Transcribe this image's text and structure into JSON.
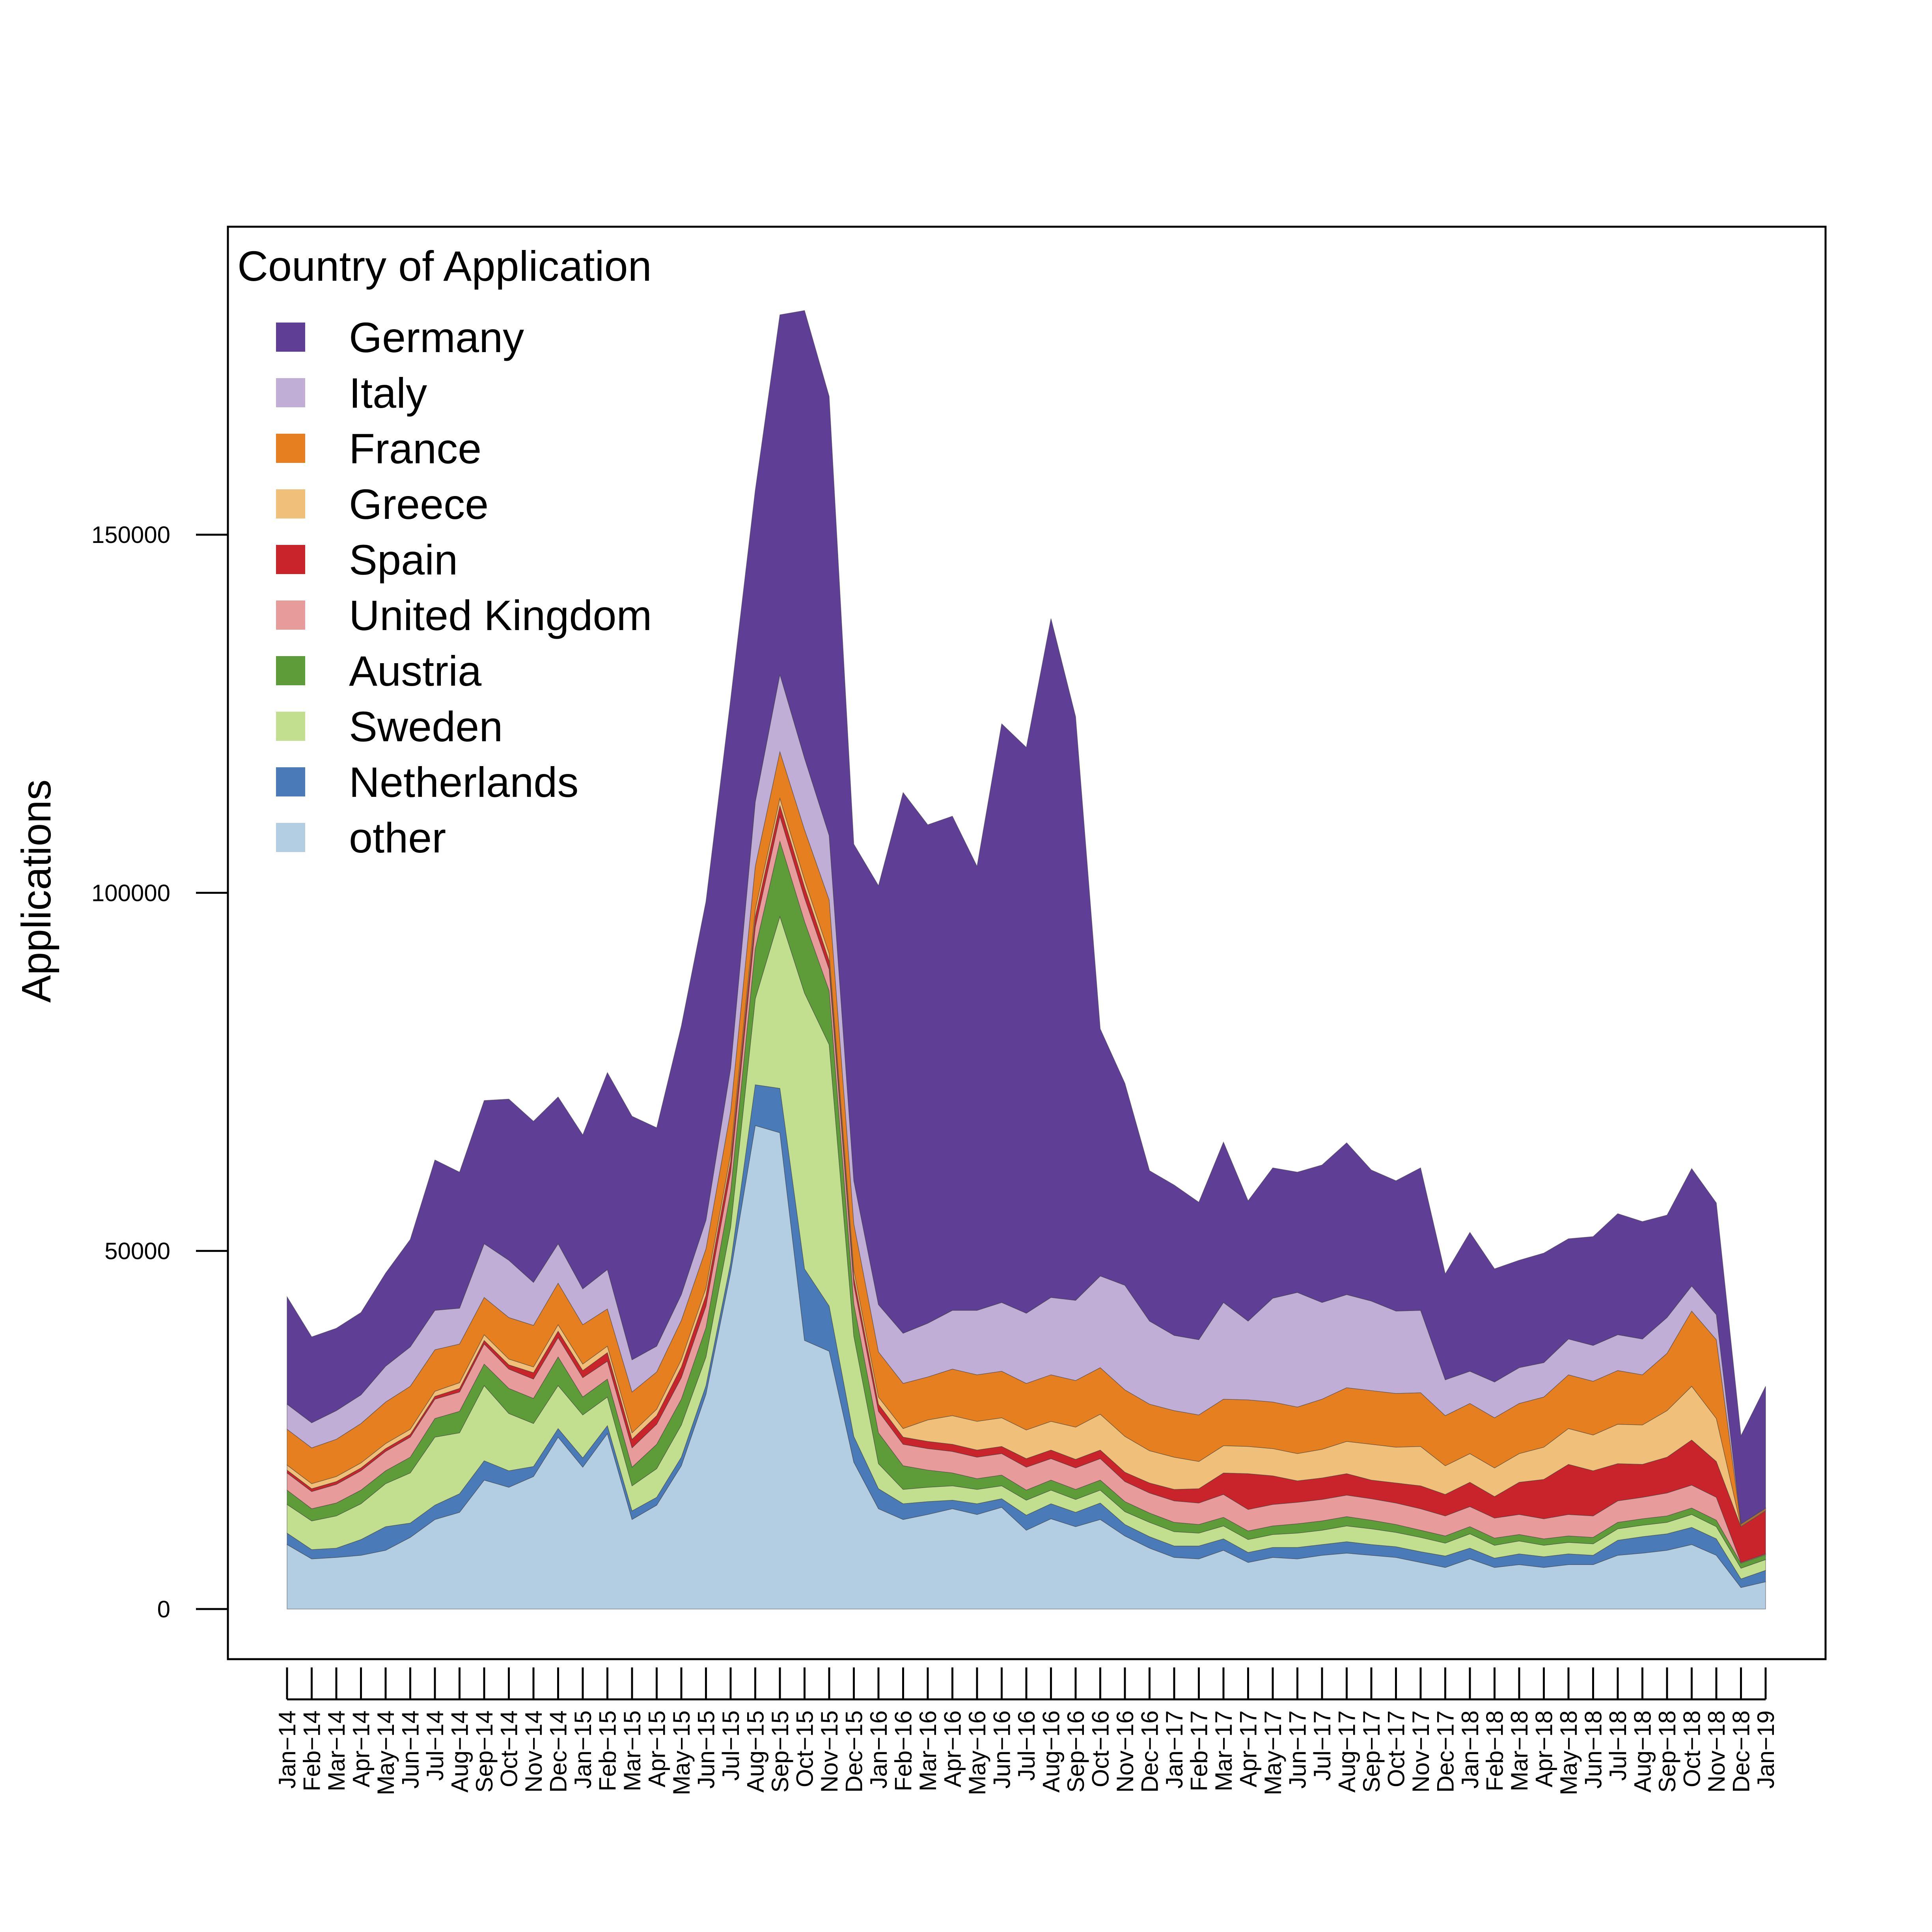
{
  "chart_data": {
    "type": "area",
    "stacked": true,
    "title": "",
    "xlabel": "",
    "ylabel": "Applications",
    "ylim": [
      -7000,
      193000
    ],
    "yticks": [
      0,
      50000,
      100000,
      150000
    ],
    "y_tick_labels": [
      "0",
      "50000",
      "100000",
      "150000"
    ],
    "grid": false,
    "legend": {
      "title": "Country of Application",
      "position": "top-left"
    },
    "x": [
      "Jan-14",
      "Feb-14",
      "Mar-14",
      "Apr-14",
      "May-14",
      "Jun-14",
      "Jul-14",
      "Aug-14",
      "Sep-14",
      "Oct-14",
      "Nov-14",
      "Dec-14",
      "Jan-15",
      "Feb-15",
      "Mar-15",
      "Apr-15",
      "May-15",
      "Jun-15",
      "Jul-15",
      "Aug-15",
      "Sep-15",
      "Oct-15",
      "Nov-15",
      "Dec-15",
      "Jan-16",
      "Feb-16",
      "Mar-16",
      "Apr-16",
      "May-16",
      "Jun-16",
      "Jul-16",
      "Aug-16",
      "Sep-16",
      "Oct-16",
      "Nov-16",
      "Dec-16",
      "Jan-17",
      "Feb-17",
      "Mar-17",
      "Apr-17",
      "May-17",
      "Jun-17",
      "Jul-17",
      "Aug-17",
      "Sep-17",
      "Oct-17",
      "Nov-17",
      "Dec-17",
      "Jan-18",
      "Feb-18",
      "Mar-18",
      "Apr-18",
      "May-18",
      "Jun-18",
      "Jul-18",
      "Aug-18",
      "Sep-18",
      "Oct-18",
      "Nov-18",
      "Dec-18",
      "Jan-19"
    ],
    "x_tick_labels": [
      "Jan−14",
      "Feb−14",
      "Mar−14",
      "Apr−14",
      "May−14",
      "Jun−14",
      "Jul−14",
      "Aug−14",
      "Sep−14",
      "Oct−14",
      "Nov−14",
      "Dec−14",
      "Jan−15",
      "Feb−15",
      "Mar−15",
      "Apr−15",
      "May−15",
      "Jun−15",
      "Jul−15",
      "Aug−15",
      "Sep−15",
      "Oct−15",
      "Nov−15",
      "Dec−15",
      "Jan−16",
      "Feb−16",
      "Mar−16",
      "Apr−16",
      "May−16",
      "Jun−16",
      "Jul−16",
      "Aug−16",
      "Sep−16",
      "Oct−16",
      "Nov−16",
      "Dec−16",
      "Jan−17",
      "Feb−17",
      "Mar−17",
      "Apr−17",
      "May−17",
      "Jun−17",
      "Jul−17",
      "Aug−17",
      "Sep−17",
      "Oct−17",
      "Nov−17",
      "Dec−17",
      "Jan−18",
      "Feb−18",
      "Mar−18",
      "Apr−18",
      "May−18",
      "Jun−18",
      "Jul−18",
      "Aug−18",
      "Sep−18",
      "Oct−18",
      "Nov−18",
      "Dec−18",
      "Jan−19"
    ],
    "series": [
      {
        "name": "other",
        "color": "#b3cde3",
        "values": [
          9000,
          7000,
          7200,
          7500,
          8200,
          10000,
          12500,
          13500,
          18000,
          17000,
          18500,
          24000,
          19800,
          24500,
          12500,
          14500,
          20000,
          30000,
          47000,
          67500,
          66500,
          37500,
          36000,
          20500,
          14000,
          12500,
          13200,
          14000,
          13200,
          14200,
          11000,
          12600,
          11500,
          12500,
          10200,
          8500,
          7200,
          7000,
          8200,
          6500,
          7200,
          7000,
          7500,
          7800,
          7500,
          7200,
          6500,
          5800,
          7000,
          5800,
          6200,
          5800,
          6200,
          6200,
          7500,
          7800,
          8200,
          9000,
          7500,
          3000,
          3800
        ]
      },
      {
        "name": "Netherlands",
        "color": "#4a7ab8",
        "values": [
          1600,
          1300,
          1300,
          2200,
          3300,
          2000,
          2000,
          2600,
          2700,
          2300,
          1400,
          1200,
          1300,
          1100,
          1200,
          1100,
          1200,
          1200,
          1300,
          5700,
          6200,
          10000,
          6300,
          3600,
          2800,
          2200,
          1800,
          1200,
          1500,
          1200,
          2100,
          2100,
          2000,
          2300,
          1600,
          1600,
          1600,
          1800,
          1600,
          1400,
          1400,
          1600,
          1500,
          1600,
          1500,
          1500,
          1500,
          1600,
          1500,
          1300,
          1500,
          1500,
          1500,
          1300,
          2100,
          2300,
          2300,
          2400,
          2300,
          1200,
          1600
        ]
      },
      {
        "name": "Sweden",
        "color": "#c1df8e",
        "values": [
          4000,
          4000,
          4500,
          5000,
          6000,
          7000,
          9500,
          8500,
          10500,
          8000,
          6000,
          6000,
          6000,
          4000,
          3500,
          4000,
          4500,
          4000,
          5000,
          12000,
          24000,
          38500,
          36500,
          14000,
          3500,
          2000,
          2000,
          2000,
          2000,
          1800,
          2100,
          1900,
          1800,
          1800,
          1800,
          2000,
          2000,
          1800,
          1800,
          1800,
          1800,
          2000,
          2000,
          2200,
          2200,
          2000,
          2000,
          1800,
          2000,
          1800,
          1800,
          1600,
          1600,
          1600,
          1600,
          1600,
          1600,
          1800,
          1700,
          1500,
          1500
        ]
      },
      {
        "name": "Austria",
        "color": "#5e9c3a",
        "values": [
          2000,
          1700,
          1800,
          1900,
          1800,
          2200,
          2600,
          3000,
          3000,
          3500,
          3500,
          4000,
          2500,
          2500,
          2600,
          3400,
          3600,
          4100,
          5000,
          7000,
          10500,
          10000,
          7500,
          4500,
          4300,
          3300,
          2400,
          1800,
          1500,
          1500,
          1400,
          1400,
          1400,
          1400,
          1400,
          1300,
          1300,
          1200,
          1200,
          1200,
          1200,
          1300,
          1300,
          1300,
          1200,
          1100,
          1000,
          1000,
          1000,
          1000,
          900,
          900,
          900,
          900,
          900,
          900,
          900,
          900,
          900,
          700,
          700
        ]
      },
      {
        "name": "United Kingdom",
        "color": "#e89b9b",
        "values": [
          2400,
          2400,
          2600,
          2700,
          2700,
          2800,
          2700,
          2700,
          2800,
          2700,
          2700,
          2700,
          2700,
          2500,
          2700,
          2800,
          3000,
          3000,
          2700,
          3000,
          3500,
          3300,
          3000,
          2700,
          3000,
          3000,
          3000,
          3000,
          3000,
          3000,
          3200,
          3000,
          3000,
          3000,
          2800,
          2800,
          3000,
          3000,
          3200,
          3000,
          3000,
          3000,
          3000,
          3000,
          3000,
          3000,
          3000,
          2800,
          2800,
          2800,
          2800,
          2800,
          3000,
          3000,
          3000,
          3000,
          3200,
          3200,
          3200,
          100,
          100
        ]
      },
      {
        "name": "Spain",
        "color": "#c9232b",
        "values": [
          400,
          400,
          400,
          400,
          400,
          400,
          400,
          500,
          500,
          600,
          900,
          900,
          1000,
          1200,
          1200,
          1200,
          1500,
          1500,
          1500,
          1500,
          1500,
          1500,
          1200,
          1000,
          1000,
          1000,
          1000,
          1000,
          1000,
          1000,
          1200,
          1200,
          1200,
          1200,
          1300,
          1400,
          1600,
          2000,
          3000,
          5000,
          4000,
          3000,
          3000,
          3000,
          2600,
          2800,
          3200,
          3000,
          3400,
          3000,
          4500,
          5500,
          7000,
          6300,
          5200,
          4600,
          5000,
          6300,
          5000,
          5000,
          6000
        ]
      },
      {
        "name": "Greece",
        "color": "#f0c07a",
        "values": [
          700,
          700,
          700,
          700,
          700,
          700,
          700,
          800,
          800,
          800,
          800,
          900,
          900,
          900,
          900,
          900,
          1000,
          1000,
          1000,
          1000,
          1000,
          1000,
          1000,
          1000,
          1000,
          1200,
          3000,
          4000,
          4000,
          4000,
          4000,
          4000,
          4500,
          5000,
          5000,
          4500,
          4500,
          3800,
          3800,
          3800,
          3800,
          3800,
          4000,
          4500,
          5000,
          5000,
          5500,
          4000,
          4000,
          4000,
          4000,
          4500,
          5000,
          5000,
          5500,
          5500,
          6500,
          7500,
          6000,
          100,
          100
        ]
      },
      {
        "name": "France",
        "color": "#e57f1f",
        "values": [
          5000,
          5000,
          5200,
          5500,
          5800,
          6000,
          5800,
          5400,
          5200,
          5800,
          5800,
          5800,
          5500,
          5200,
          5700,
          5200,
          5500,
          5500,
          6000,
          6000,
          6500,
          7000,
          7500,
          6500,
          6300,
          6300,
          6000,
          6500,
          6500,
          6500,
          6500,
          6500,
          6500,
          6500,
          6500,
          6500,
          6500,
          6500,
          6500,
          6500,
          6500,
          6500,
          7000,
          7500,
          7500,
          7500,
          7500,
          7000,
          7000,
          7000,
          7000,
          7000,
          7500,
          7500,
          7500,
          7000,
          8000,
          10500,
          11000,
          200,
          200
        ]
      },
      {
        "name": "Italy",
        "color": "#c1aed6",
        "values": [
          3500,
          3500,
          4000,
          4000,
          5000,
          5500,
          5500,
          5000,
          7500,
          8000,
          6000,
          5500,
          5000,
          5500,
          4500,
          3600,
          3600,
          4000,
          6000,
          9000,
          10800,
          10000,
          9000,
          6000,
          6600,
          7000,
          7500,
          8200,
          9000,
          9600,
          9800,
          10800,
          11200,
          12800,
          14600,
          11600,
          10500,
          10500,
          13500,
          11000,
          14500,
          16000,
          13500,
          13000,
          12500,
          11500,
          11500,
          5000,
          4500,
          5000,
          5000,
          4800,
          5000,
          5000,
          5000,
          5000,
          5000,
          3500,
          3500,
          100,
          100
        ]
      },
      {
        "name": "Germany",
        "color": "#5f3e96",
        "values": [
          15000,
          12000,
          11500,
          11500,
          13000,
          15000,
          21000,
          19000,
          20000,
          22500,
          22500,
          20500,
          21500,
          27500,
          34000,
          30500,
          37500,
          44500,
          51500,
          43500,
          50200,
          62500,
          61300,
          47000,
          58500,
          75500,
          69600,
          69000,
          62000,
          80800,
          79000,
          94800,
          81500,
          34500,
          28200,
          21000,
          21000,
          19200,
          22400,
          16800,
          18200,
          16800,
          19200,
          21200,
          18300,
          18200,
          19900,
          14800,
          19400,
          15800,
          15000,
          15300,
          14000,
          15200,
          16900,
          16400,
          14300,
          16400,
          15600,
          12300,
          17000
        ]
      }
    ]
  }
}
